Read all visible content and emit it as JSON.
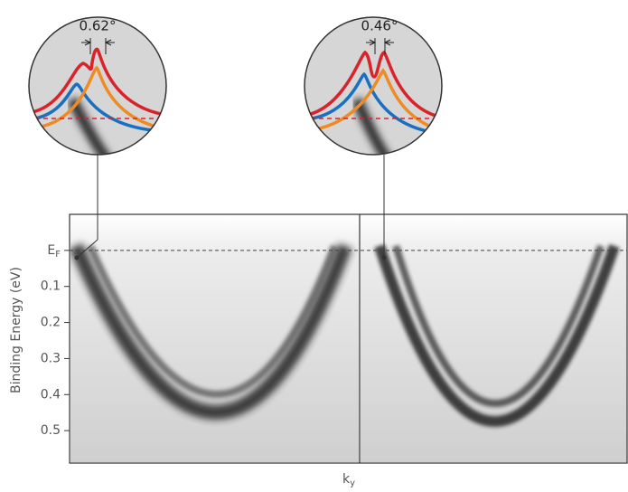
{
  "chart_data": {
    "type": "arpes",
    "ylabel": "Binding Energy (eV)",
    "xlabel": {
      "text": "k",
      "subscript": "y"
    },
    "ylim": [
      -0.1,
      0.59
    ],
    "yticks": [
      {
        "value": 0,
        "label": "E",
        "subscript": "F"
      },
      0.1,
      0.2,
      0.3,
      0.4,
      0.5
    ],
    "annotations": [
      "0.62°",
      "0.46°"
    ]
  }
}
